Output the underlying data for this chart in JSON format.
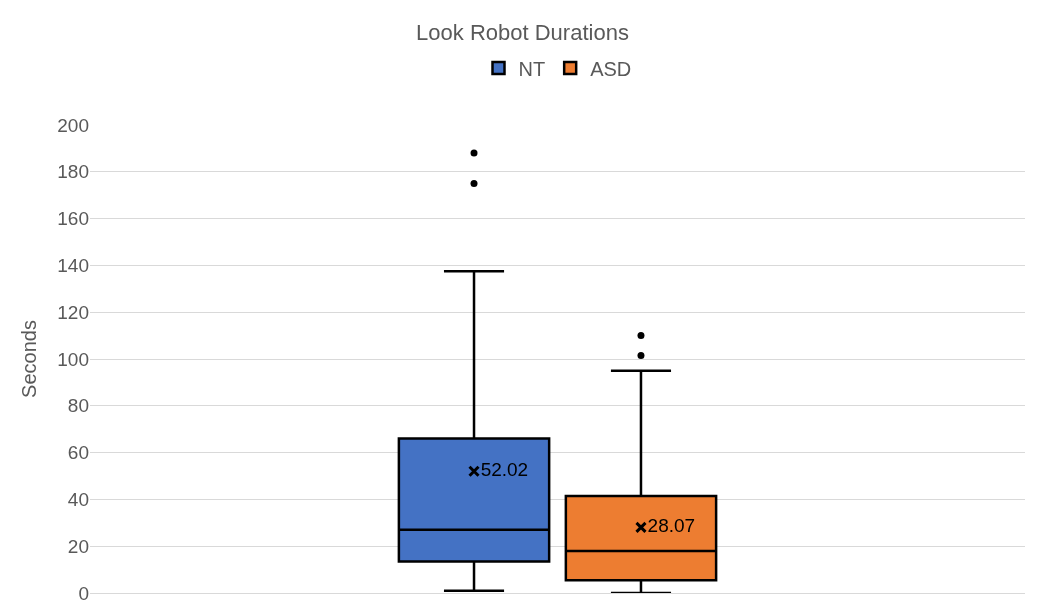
{
  "chart_data": {
    "type": "box",
    "title": "Look Robot Durations",
    "ylabel": "Seconds",
    "categories": [
      null
    ],
    "series": [
      {
        "name": "NT",
        "color": "#4472c4",
        "boxes": [
          {
            "low": 1,
            "q1": 13.5,
            "median": 27,
            "q3": 66,
            "high": 137.5,
            "mean": 52.02,
            "outliers": [
              175,
              188
            ]
          }
        ],
        "value_labels": [
          "52.02"
        ]
      },
      {
        "name": "ASD",
        "color": "#ed7d31",
        "boxes": [
          {
            "low": 0,
            "q1": 5.5,
            "median": 18,
            "q3": 41.5,
            "high": 95,
            "mean": 28.07,
            "outliers": [
              101.5,
              110
            ]
          }
        ],
        "value_labels": [
          "28.07"
        ]
      }
    ],
    "ylim": [
      0,
      200
    ],
    "yticks": [
      0,
      20,
      40,
      60,
      80,
      100,
      120,
      140,
      160,
      180,
      200
    ],
    "grid": "y",
    "legend": "top"
  }
}
